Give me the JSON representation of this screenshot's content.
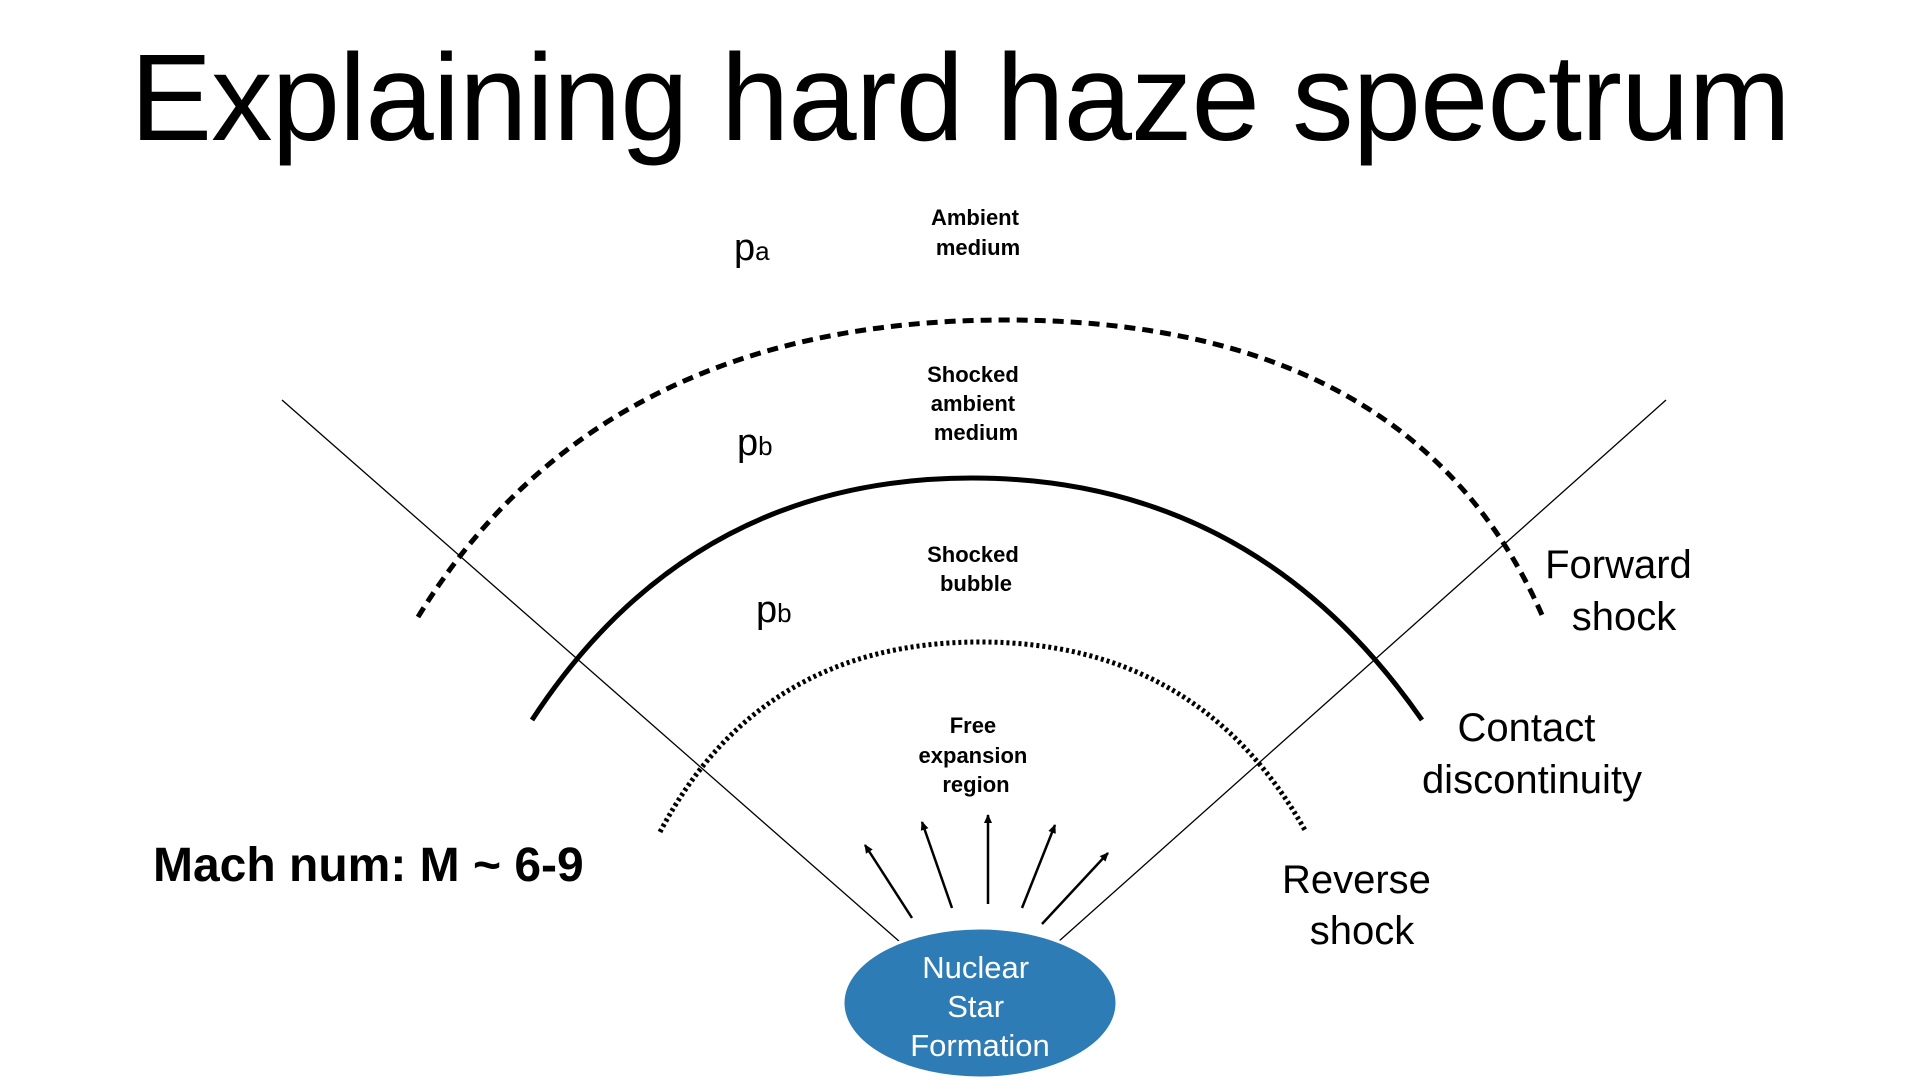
{
  "title": "Explaining hard haze spectrum",
  "regions": {
    "ambient": [
      "Ambient",
      "medium"
    ],
    "shocked_ambient": [
      "Shocked",
      "ambient",
      "medium"
    ],
    "shocked_bubble": [
      "Shocked",
      "bubble"
    ],
    "free_expansion": [
      "Free",
      "expansion",
      "region"
    ]
  },
  "pressure_labels": [
    {
      "symbol": "p",
      "sub": "a"
    },
    {
      "symbol": "p",
      "sub": "b"
    },
    {
      "symbol": "p",
      "sub": "b"
    }
  ],
  "boundaries": {
    "forward_shock": [
      "Forward",
      "shock"
    ],
    "contact_discontinuity": [
      "Contact",
      "discontinuity"
    ],
    "reverse_shock": [
      "Reverse",
      "shock"
    ]
  },
  "mach_number": "Mach num: M ~ 6-9",
  "source": [
    "Nuclear",
    "Star",
    "Formation"
  ],
  "colors": {
    "source_fill": "#2e7cb5",
    "source_text": "#ffffff",
    "line": "#000000"
  },
  "arrow_count": 5
}
